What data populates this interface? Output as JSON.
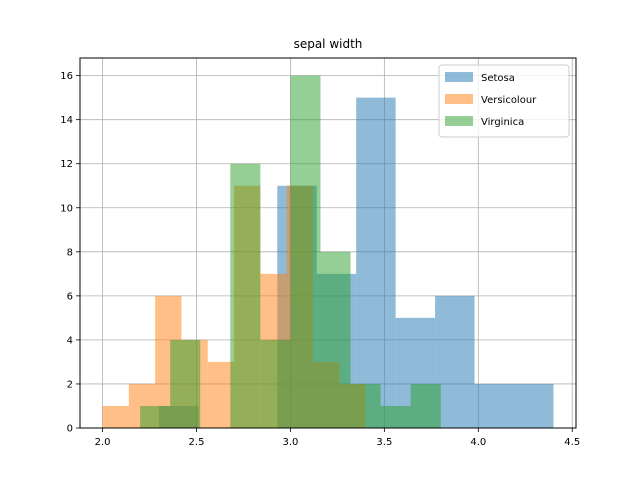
{
  "chart_data": {
    "type": "histogram",
    "title": "sepal width",
    "xlabel": "",
    "ylabel": "",
    "xlim": [
      1.88,
      4.52
    ],
    "ylim": [
      0,
      16.8
    ],
    "x_ticks": [
      2.0,
      2.5,
      3.0,
      3.5,
      4.0,
      4.5
    ],
    "x_tick_labels": [
      "2.0",
      "2.5",
      "3.0",
      "3.5",
      "4.0",
      "4.5"
    ],
    "y_ticks": [
      0,
      2,
      4,
      6,
      8,
      10,
      12,
      14,
      16
    ],
    "y_tick_labels": [
      "0",
      "2",
      "4",
      "6",
      "8",
      "10",
      "12",
      "14",
      "16"
    ],
    "grid": true,
    "legend_position": "top-right",
    "bar_alpha": 0.5,
    "series": [
      {
        "name": "Setosa",
        "color": "#1f77b4",
        "bin_edges": [
          2.3,
          2.51,
          2.72,
          2.93,
          3.14,
          3.35,
          3.56,
          3.77,
          3.98,
          4.19,
          4.4
        ],
        "counts": [
          1,
          0,
          0,
          11,
          7,
          15,
          5,
          6,
          2,
          2
        ]
      },
      {
        "name": "Versicolour",
        "color": "#ff7f0e",
        "bin_edges": [
          2.0,
          2.14,
          2.28,
          2.42,
          2.56,
          2.7,
          2.84,
          2.98,
          3.12,
          3.26,
          3.4
        ],
        "counts": [
          1,
          2,
          6,
          4,
          3,
          11,
          7,
          11,
          3,
          2
        ]
      },
      {
        "name": "Virginica",
        "color": "#2ca02c",
        "bin_edges": [
          2.2,
          2.36,
          2.52,
          2.68,
          2.84,
          3.0,
          3.16,
          3.32,
          3.48,
          3.64,
          3.8
        ],
        "counts": [
          1,
          4,
          0,
          12,
          4,
          16,
          8,
          2,
          1,
          2
        ]
      }
    ]
  }
}
